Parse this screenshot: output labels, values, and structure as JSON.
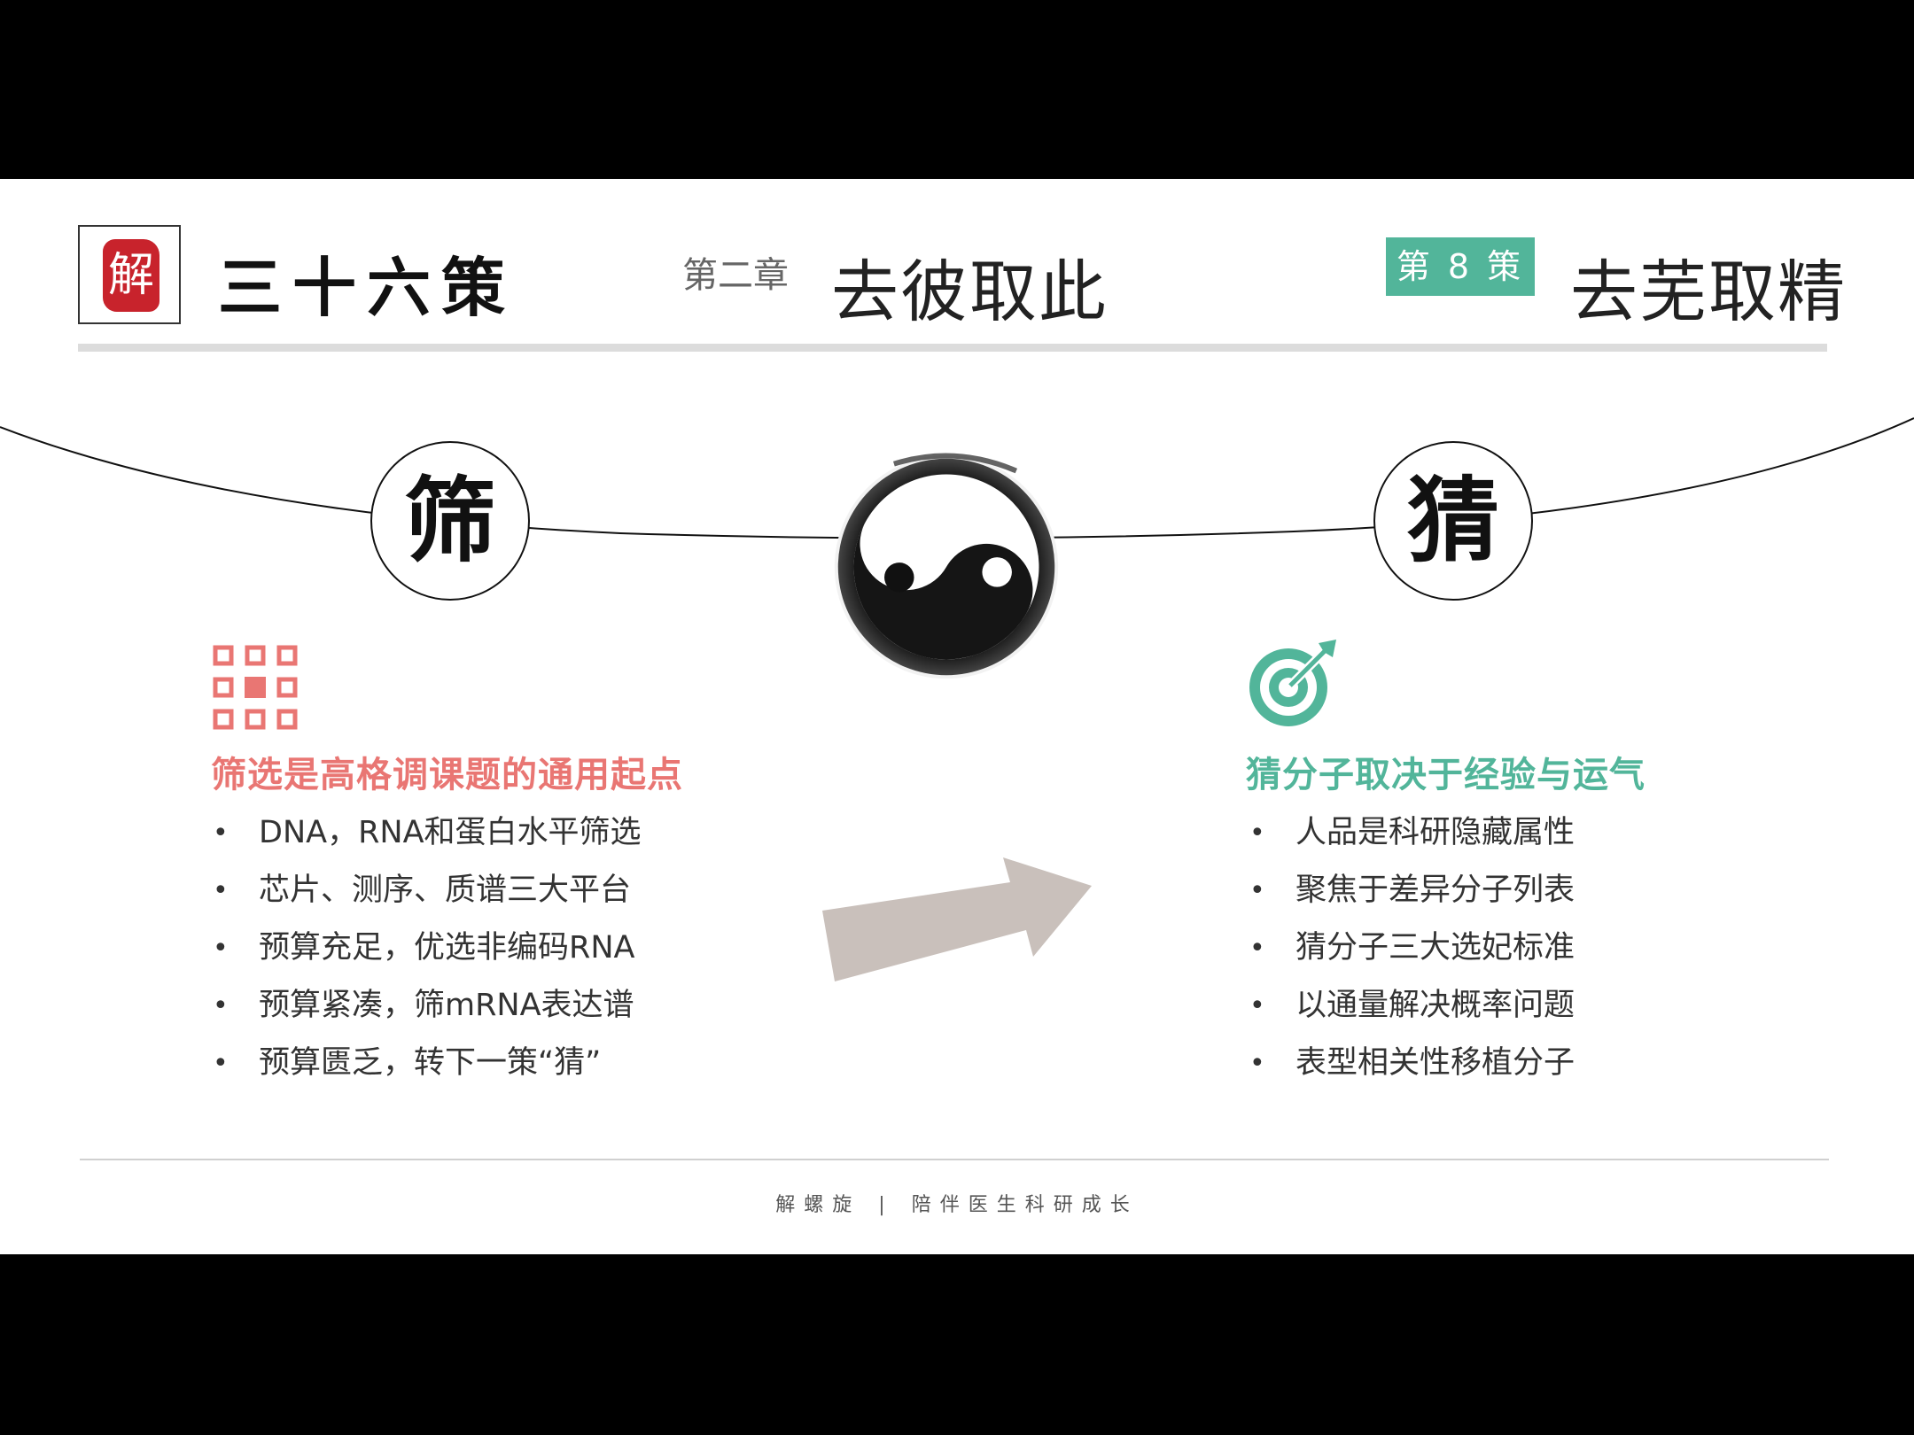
{
  "header": {
    "seal_char": "解",
    "brand_title": "三十六策",
    "chapter_label": "第二章",
    "chapter_title": "去彼取此",
    "strategy_badge": "第 8 策",
    "strategy_title": "去芜取精"
  },
  "diagram": {
    "left_char": "筛",
    "right_char": "猜"
  },
  "left_column": {
    "title": "筛选是高格调课题的通用起点",
    "items": [
      "DNA，RNA和蛋白水平筛选",
      "芯片、测序、质谱三大平台",
      "预算充足，优选非编码RNA",
      "预算紧凑，筛mRNA表达谱",
      "预算匮乏，转下一策“猜”"
    ],
    "accent_color": "#e97673"
  },
  "right_column": {
    "title": "猜分子取决于经验与运气",
    "items": [
      "人品是科研隐藏属性",
      "聚焦于差异分子列表",
      "猜分子三大选妃标准",
      "以通量解决概率问题",
      "表型相关性移植分子"
    ],
    "accent_color": "#52b59a"
  },
  "footer": {
    "brand": "解螺旋",
    "separator": "|",
    "slogan": "陪伴医生科研成长"
  }
}
